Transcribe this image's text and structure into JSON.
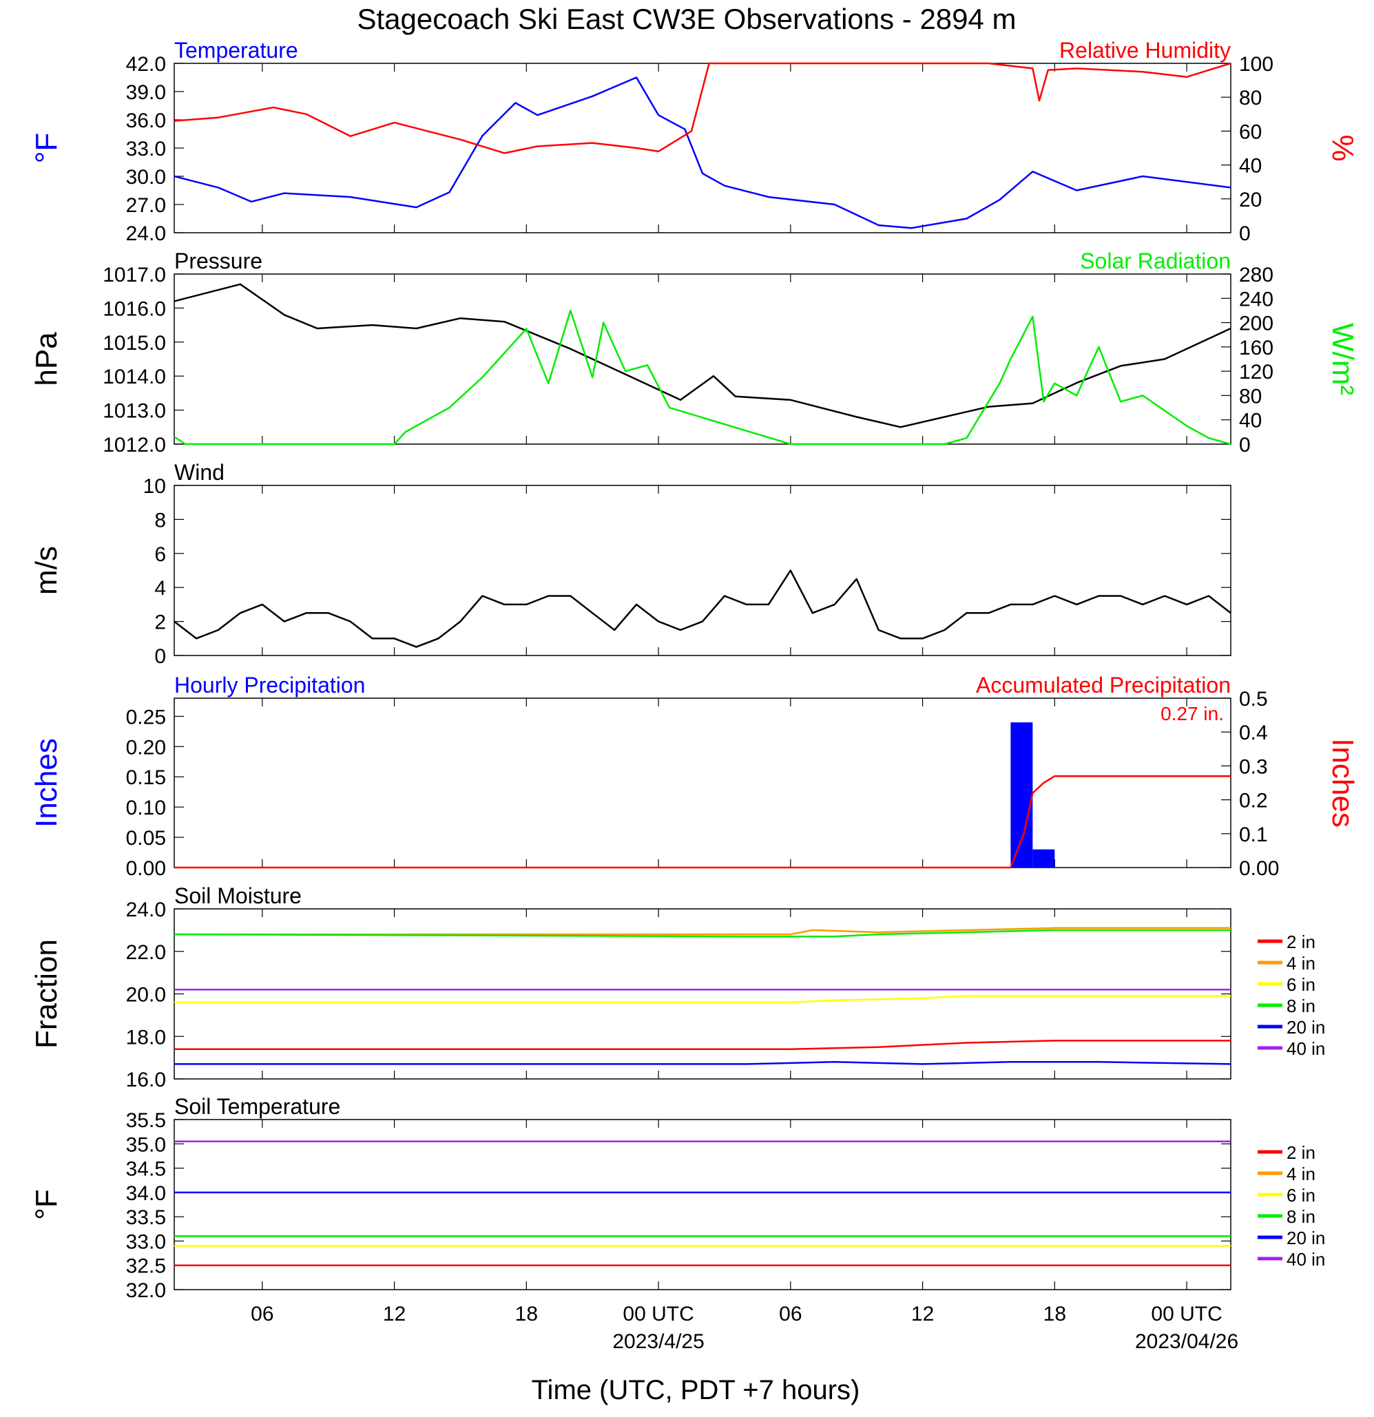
{
  "title": "Stagecoach Ski East CW3E Observations - 2894 m",
  "colors": {
    "blue": "#0000ff",
    "red": "#ff0000",
    "green": "#00ee00",
    "black": "#000000",
    "orange": "#ff9900",
    "yellow": "#ffff00",
    "purple": "#a020f0"
  },
  "x_axis": {
    "label": "Time (UTC, PDT +7 hours)",
    "range_hours": [
      -22,
      26
    ],
    "ticks": [
      {
        "hour": -18,
        "label": "06"
      },
      {
        "hour": -12,
        "label": "12"
      },
      {
        "hour": -6,
        "label": "18"
      },
      {
        "hour": 0,
        "label": "00 UTC"
      },
      {
        "hour": 6,
        "label": "06"
      },
      {
        "hour": 12,
        "label": "12"
      },
      {
        "hour": 18,
        "label": "18"
      },
      {
        "hour": 24,
        "label": "00 UTC"
      }
    ],
    "date_labels": [
      {
        "hour": 0,
        "label": "2023/4/25"
      },
      {
        "hour": 24,
        "label": "2023/04/26"
      }
    ]
  },
  "chart_data": [
    {
      "type": "line",
      "panel": "temperature-humidity",
      "title_left": "Temperature",
      "title_right": "Relative Humidity",
      "ylabel_left": "°F",
      "ylabel_right": "%",
      "ylim_left": [
        24,
        42
      ],
      "yticks_left": [
        "24.0",
        "27.0",
        "30.0",
        "33.0",
        "36.0",
        "39.0",
        "42.0"
      ],
      "ylim_right": [
        0,
        100
      ],
      "yticks_right": [
        "0",
        "20",
        "40",
        "60",
        "80",
        "100"
      ],
      "series": [
        {
          "name": "Temperature",
          "axis": "left",
          "color": "#0000ff",
          "x": [
            -22,
            -20,
            -18.5,
            -17,
            -14,
            -11,
            -9.5,
            -8,
            -6.5,
            -5.5,
            -3,
            -1,
            0,
            1.2,
            2,
            3,
            5,
            8,
            10,
            11.5,
            14,
            15.5,
            17,
            19,
            22,
            26
          ],
          "y": [
            30,
            28.8,
            27.3,
            28.2,
            27.8,
            26.7,
            28.3,
            34.3,
            37.8,
            36.5,
            38.5,
            40.5,
            36.5,
            35,
            30.3,
            29,
            27.8,
            27,
            24.8,
            24.5,
            25.5,
            27.5,
            30.5,
            28.5,
            30,
            28.8
          ]
        },
        {
          "name": "Relative Humidity",
          "axis": "right",
          "color": "#ff0000",
          "x": [
            -22,
            -20,
            -17.5,
            -16,
            -14,
            -12,
            -9,
            -7,
            -5.5,
            -3,
            -1,
            0,
            1.5,
            2.3,
            3,
            6,
            10,
            15,
            17,
            17.3,
            17.7,
            19,
            22,
            24,
            26
          ],
          "y": [
            66,
            68,
            74,
            70,
            57,
            65,
            55,
            47,
            51,
            53,
            50,
            48,
            60,
            100,
            100,
            100,
            100,
            100,
            97,
            78,
            96,
            97,
            95,
            92,
            100
          ]
        }
      ]
    },
    {
      "type": "line",
      "panel": "pressure-solar",
      "title_left": "Pressure",
      "title_right": "Solar Radiation",
      "ylabel_left": "hPa",
      "ylabel_right": "W/m²",
      "ylim_left": [
        1012,
        1017
      ],
      "yticks_left": [
        "1012.0",
        "1013.0",
        "1014.0",
        "1015.0",
        "1016.0",
        "1017.0"
      ],
      "ylim_right": [
        0,
        280
      ],
      "yticks_right": [
        "0",
        "40",
        "80",
        "120",
        "160",
        "200",
        "240",
        "280"
      ],
      "series": [
        {
          "name": "Pressure",
          "axis": "left",
          "color": "#000000",
          "x": [
            -22,
            -19,
            -17,
            -15.5,
            -13,
            -11,
            -9,
            -7,
            -4,
            -2,
            1,
            2.5,
            3.5,
            6,
            9,
            11,
            13,
            15,
            17,
            19,
            21,
            23,
            26
          ],
          "y": [
            1016.2,
            1016.7,
            1015.8,
            1015.4,
            1015.5,
            1015.4,
            1015.7,
            1015.6,
            1014.8,
            1014.2,
            1013.3,
            1014.0,
            1013.4,
            1013.3,
            1012.8,
            1012.5,
            1012.8,
            1013.1,
            1013.2,
            1013.8,
            1014.3,
            1014.5,
            1015.4
          ]
        },
        {
          "name": "Solar Radiation",
          "axis": "right",
          "color": "#00ee00",
          "x": [
            -22,
            -21.5,
            -12,
            -11.5,
            -10.5,
            -9.5,
            -8,
            -6,
            -5,
            -4,
            -3,
            -2.5,
            -1.5,
            -0.5,
            0.5,
            6,
            13,
            14,
            15.5,
            16,
            17,
            17.5,
            18,
            19,
            20,
            21,
            22,
            24,
            25,
            26
          ],
          "y": [
            12,
            0,
            0,
            20,
            40,
            60,
            110,
            190,
            100,
            220,
            110,
            200,
            120,
            130,
            60,
            0,
            0,
            10,
            100,
            140,
            210,
            70,
            100,
            80,
            160,
            70,
            80,
            30,
            10,
            0
          ]
        }
      ]
    },
    {
      "type": "line",
      "panel": "wind",
      "title_left": "Wind",
      "ylabel_left": "m/s",
      "ylim_left": [
        0,
        10
      ],
      "yticks_left": [
        "0",
        "2",
        "4",
        "6",
        "8",
        "10"
      ],
      "series": [
        {
          "name": "Wind",
          "axis": "left",
          "color": "#000000",
          "x": [
            -22,
            -21,
            -20,
            -19,
            -18,
            -17,
            -16,
            -15,
            -14,
            -13,
            -12,
            -11,
            -10,
            -9,
            -8,
            -7,
            -6,
            -5,
            -4,
            -3,
            -2,
            -1,
            0,
            1,
            2,
            3,
            4,
            5,
            6,
            7,
            8,
            9,
            10,
            11,
            12,
            13,
            14,
            15,
            16,
            17,
            18,
            19,
            20,
            21,
            22,
            23,
            24,
            25,
            26
          ],
          "y": [
            2,
            1,
            1.5,
            2.5,
            3,
            2,
            2.5,
            2.5,
            2,
            1,
            1,
            0.5,
            1,
            2,
            3.5,
            3,
            3,
            3.5,
            3.5,
            2.5,
            1.5,
            3,
            2,
            1.5,
            2,
            3.5,
            3,
            3,
            5,
            2.5,
            3,
            4.5,
            1.5,
            1,
            1,
            1.5,
            2.5,
            2.5,
            3,
            3,
            3.5,
            3,
            3.5,
            3.5,
            3,
            3.5,
            3,
            3.5,
            2.5
          ]
        }
      ]
    },
    {
      "type": "bar",
      "panel": "precipitation",
      "title_left": "Hourly Precipitation",
      "title_right": "Accumulated Precipitation",
      "annotation": "0.27 in.",
      "ylabel_left": "Inches",
      "ylabel_right": "Inches",
      "ylim_left": [
        0,
        0.28
      ],
      "yticks_left": [
        "0.00",
        "0.05",
        "0.10",
        "0.15",
        "0.20",
        "0.25"
      ],
      "ylim_right": [
        0,
        0.5
      ],
      "yticks_right": [
        "0.00",
        "0.1",
        "0.2",
        "0.3",
        "0.4",
        "0.5"
      ],
      "bars": {
        "name": "Hourly Precipitation",
        "color": "#0000ff",
        "x": [
          16.5,
          17.5
        ],
        "values": [
          0.24,
          0.03
        ]
      },
      "series": [
        {
          "name": "Accumulated Precipitation",
          "axis": "right",
          "color": "#ff0000",
          "x": [
            -22,
            16,
            16.6,
            17,
            17.5,
            18,
            26
          ],
          "y": [
            0,
            0,
            0.1,
            0.22,
            0.25,
            0.27,
            0.27
          ]
        }
      ]
    },
    {
      "type": "line",
      "panel": "soil-moisture",
      "title_left": "Soil Moisture",
      "ylabel_left": "Fraction",
      "ylim_left": [
        16,
        24
      ],
      "yticks_left": [
        "16.0",
        "18.0",
        "20.0",
        "22.0",
        "24.0"
      ],
      "series": [
        {
          "name": "2 in",
          "color": "#ff0000",
          "x": [
            -22,
            2,
            6,
            10,
            14,
            18,
            26
          ],
          "y": [
            17.4,
            17.4,
            17.4,
            17.5,
            17.7,
            17.8,
            17.8
          ]
        },
        {
          "name": "4 in",
          "color": "#ff9900",
          "x": [
            -22,
            6,
            7,
            10,
            14,
            18,
            26
          ],
          "y": [
            22.8,
            22.8,
            23.0,
            22.9,
            23.0,
            23.1,
            23.1
          ]
        },
        {
          "name": "6 in",
          "color": "#ffff00",
          "x": [
            -22,
            6,
            8,
            12,
            14,
            20,
            26
          ],
          "y": [
            19.6,
            19.6,
            19.7,
            19.8,
            19.9,
            19.9,
            19.9
          ]
        },
        {
          "name": "8 in",
          "color": "#00ee00",
          "x": [
            -22,
            4,
            8,
            10,
            14,
            18,
            26
          ],
          "y": [
            22.8,
            22.7,
            22.7,
            22.8,
            22.9,
            23.0,
            23.0
          ]
        },
        {
          "name": "20 in",
          "color": "#0000ff",
          "x": [
            -22,
            4,
            8,
            12,
            16,
            20,
            26
          ],
          "y": [
            16.7,
            16.7,
            16.8,
            16.7,
            16.8,
            16.8,
            16.7
          ]
        },
        {
          "name": "40 in",
          "color": "#a020f0",
          "x": [
            -22,
            -4,
            4,
            12,
            20,
            26
          ],
          "y": [
            20.2,
            20.2,
            20.2,
            20.2,
            20.2,
            20.2
          ]
        }
      ]
    },
    {
      "type": "line",
      "panel": "soil-temperature",
      "title_left": "Soil Temperature",
      "ylabel_left": "°F",
      "ylim_left": [
        32,
        35.5
      ],
      "yticks_left": [
        "32.0",
        "32.5",
        "33.0",
        "33.5",
        "34.0",
        "34.5",
        "35.0",
        "35.5"
      ],
      "series": [
        {
          "name": "2 in",
          "color": "#ff0000",
          "x": [
            -22,
            26
          ],
          "y": [
            32.5,
            32.5
          ]
        },
        {
          "name": "4 in",
          "color": "#ff9900",
          "x": [
            -22,
            26
          ],
          "y": [
            33.1,
            33.1
          ]
        },
        {
          "name": "6 in",
          "color": "#ffff00",
          "x": [
            -22,
            26
          ],
          "y": [
            32.9,
            32.9
          ]
        },
        {
          "name": "8 in",
          "color": "#00ee00",
          "x": [
            -22,
            26
          ],
          "y": [
            33.1,
            33.1
          ]
        },
        {
          "name": "20 in",
          "color": "#0000ff",
          "x": [
            -22,
            26
          ],
          "y": [
            34.0,
            34.0
          ]
        },
        {
          "name": "40 in",
          "color": "#a020f0",
          "x": [
            -22,
            26
          ],
          "y": [
            35.05,
            35.05
          ]
        }
      ]
    }
  ]
}
